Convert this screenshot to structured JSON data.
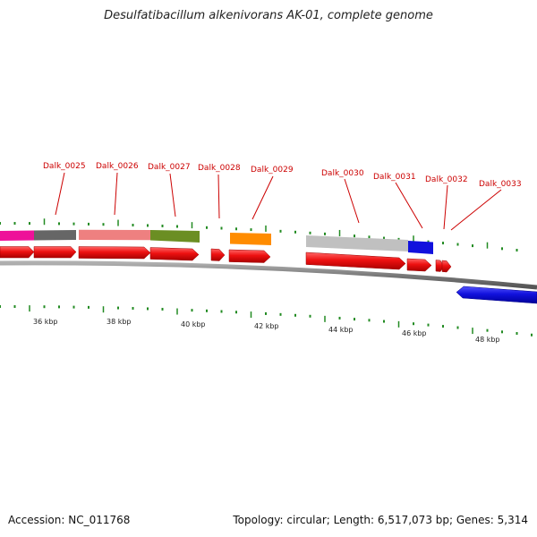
{
  "title": "Desulfatibacillum alkenivorans AK-01, complete genome",
  "footer": {
    "accession": "Accession: NC_011768",
    "stats": "Topology: circular; Length: 6,517,073 bp; Genes: 5,314"
  },
  "gene_labels": [
    "Dalk_0025",
    "Dalk_0026",
    "Dalk_0027",
    "Dalk_0028",
    "Dalk_0029",
    "Dalk_0030",
    "Dalk_0031",
    "Dalk_0032",
    "Dalk_0033"
  ],
  "scale_labels": [
    "36 kbp",
    "38 kbp",
    "40 kbp",
    "42 kbp",
    "44 kbp",
    "46 kbp",
    "48 kbp"
  ],
  "colors": {
    "forward_cds": "#ee1111",
    "reverse_cds": "#1111dd",
    "backbone": "#808080",
    "ticks": "#228b22",
    "label": "#cc0000",
    "cog_magenta": "#ee1199",
    "cog_darkgray": "#666666",
    "cog_salmon": "#ee8080",
    "cog_olive": "#6b8e23",
    "cog_orange": "#ff8c00",
    "cog_lightgray": "#c0c0c0",
    "cog_blue": "#1111dd"
  }
}
